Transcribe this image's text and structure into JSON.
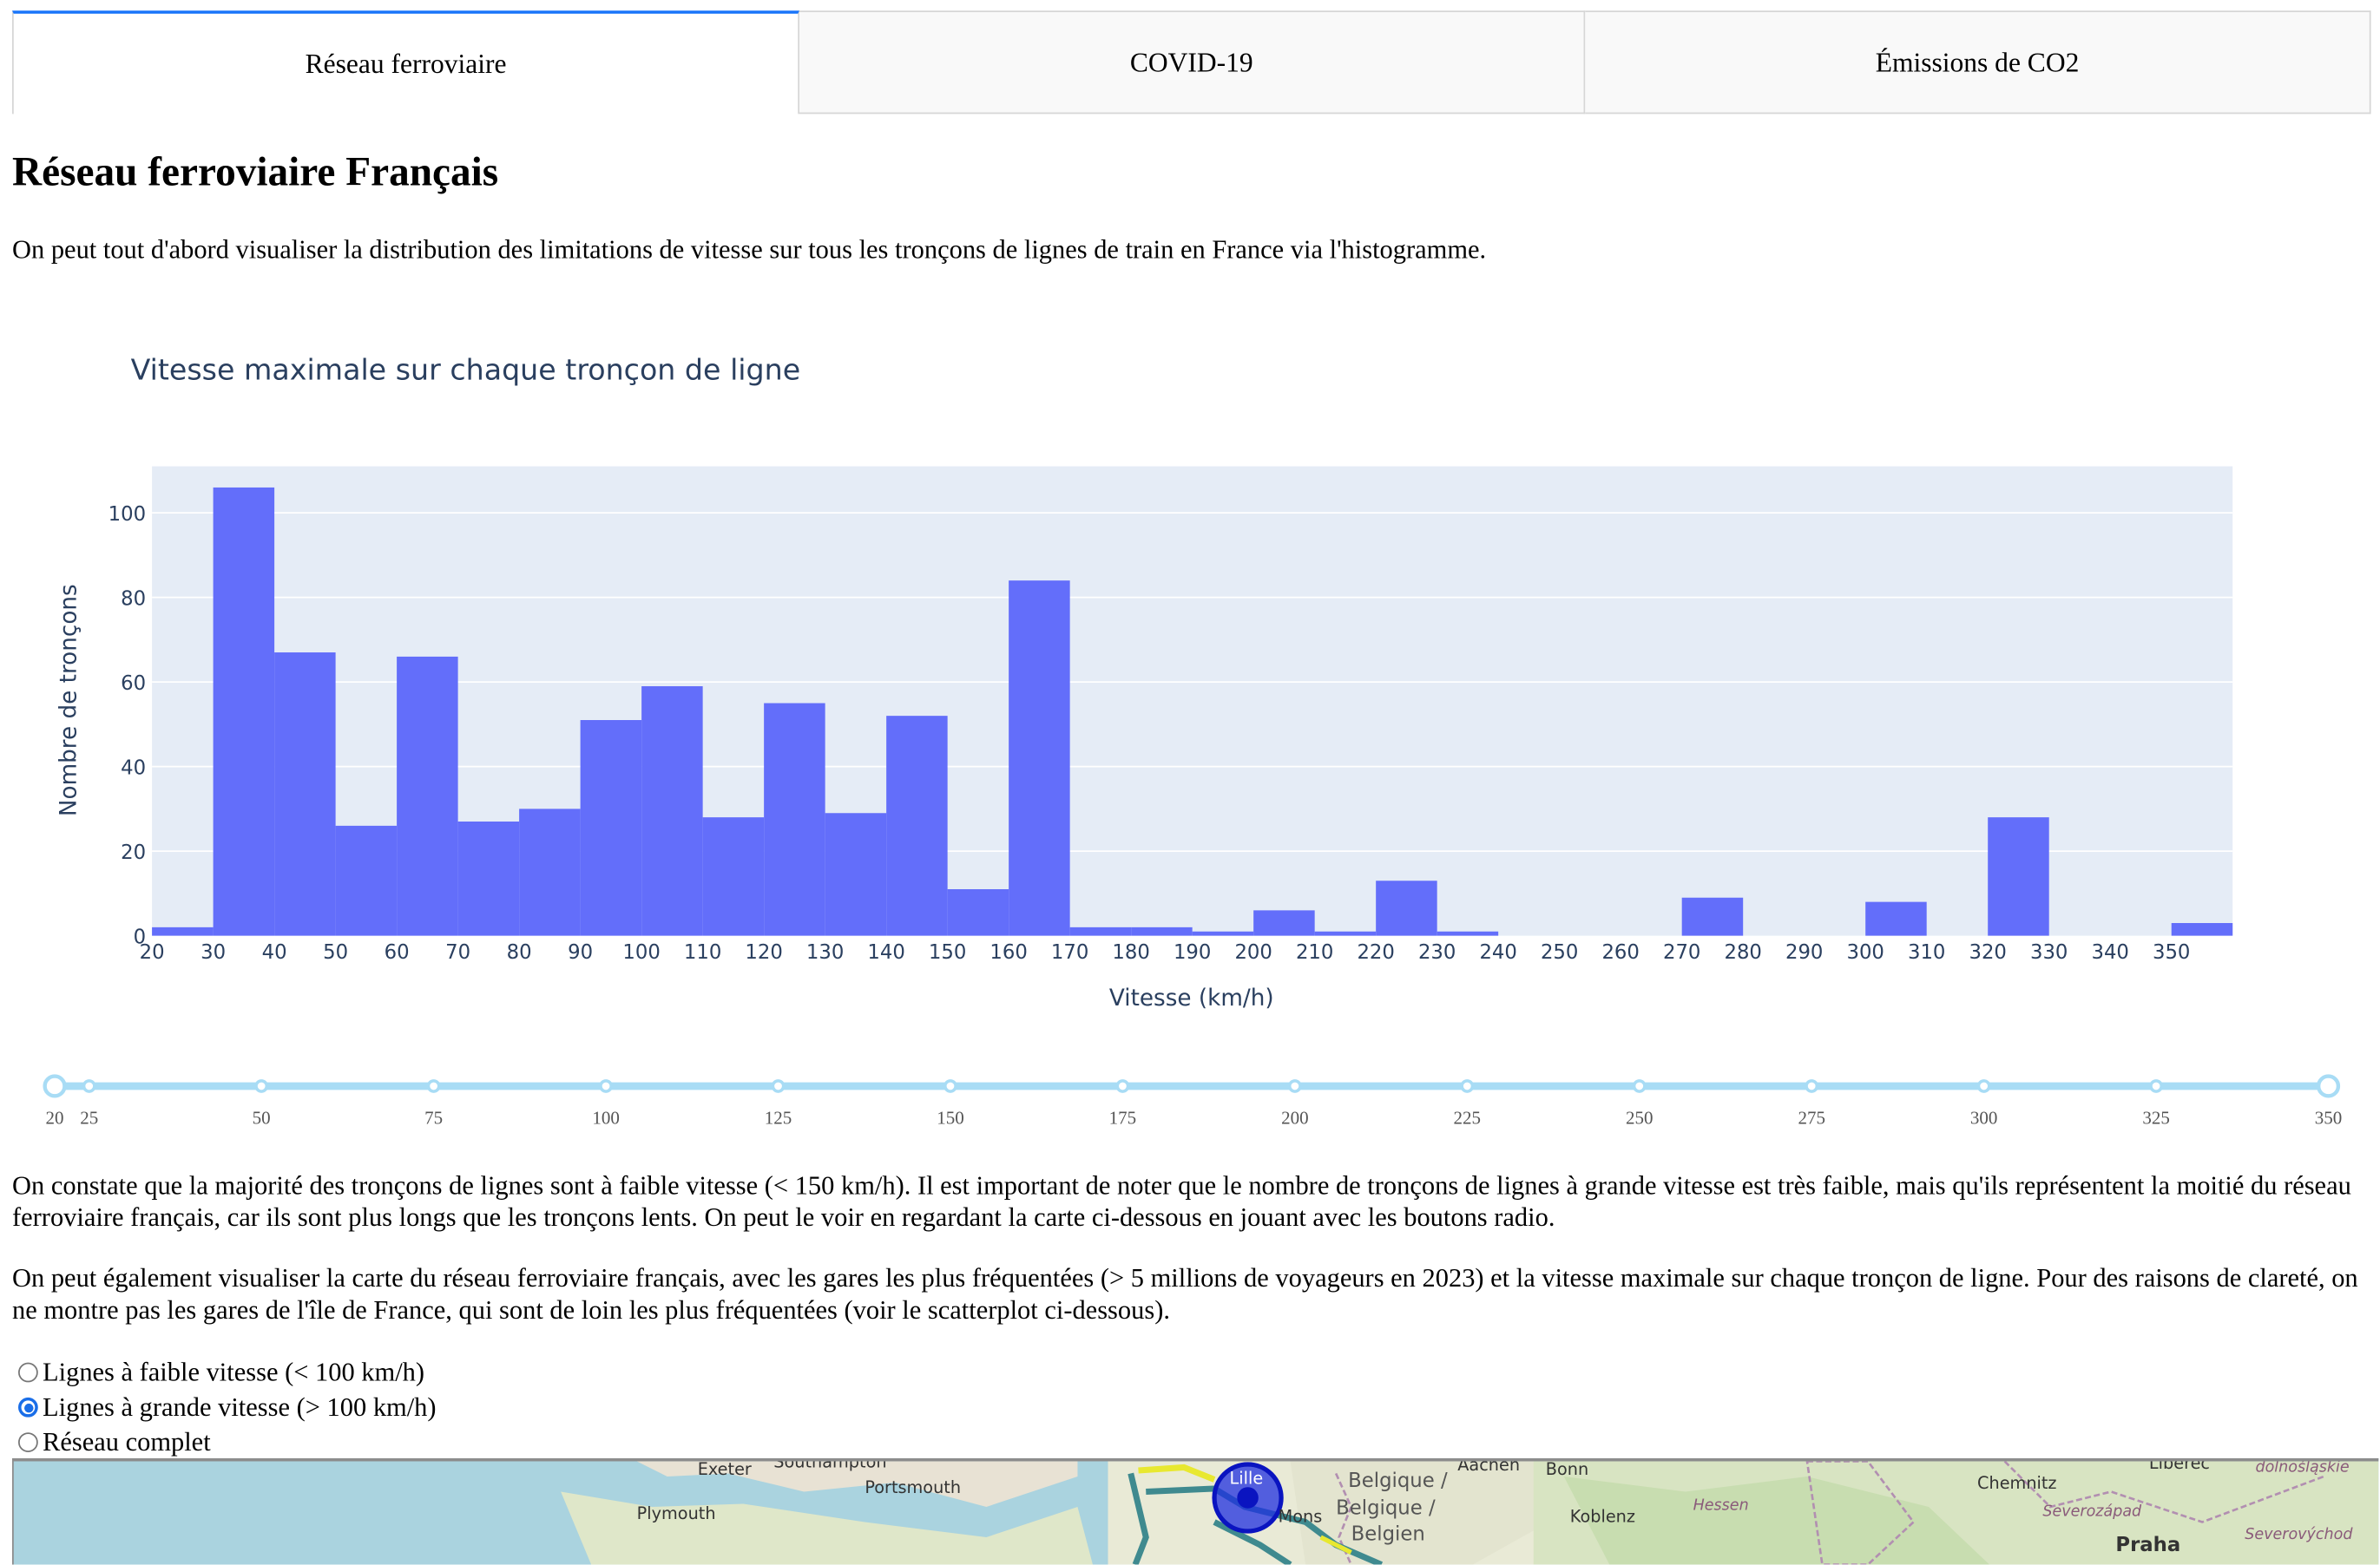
{
  "tabs": [
    {
      "label": "Réseau ferroviaire",
      "selected": true
    },
    {
      "label": "COVID-19",
      "selected": false
    },
    {
      "label": "Émissions de CO2",
      "selected": false
    }
  ],
  "page_title": "Réseau ferroviaire Français",
  "intro_text": "On peut tout d'abord visualiser la distribution des limitations de vitesse sur tous les tronçons de lignes de train en France via l'histogramme.",
  "chart_data": {
    "type": "bar",
    "title": "Vitesse maximale sur chaque tronçon de ligne",
    "xlabel": "Vitesse (km/h)",
    "ylabel": "Nombre de tronçons",
    "xlim": [
      20,
      360
    ],
    "ylim": [
      0,
      111
    ],
    "bin_width": 10,
    "bins": [
      {
        "x0": 20,
        "y": 2
      },
      {
        "x0": 30,
        "y": 106
      },
      {
        "x0": 40,
        "y": 67
      },
      {
        "x0": 50,
        "y": 26
      },
      {
        "x0": 60,
        "y": 66
      },
      {
        "x0": 70,
        "y": 27
      },
      {
        "x0": 80,
        "y": 30
      },
      {
        "x0": 90,
        "y": 51
      },
      {
        "x0": 100,
        "y": 59
      },
      {
        "x0": 110,
        "y": 28
      },
      {
        "x0": 120,
        "y": 55
      },
      {
        "x0": 130,
        "y": 29
      },
      {
        "x0": 140,
        "y": 52
      },
      {
        "x0": 150,
        "y": 11
      },
      {
        "x0": 160,
        "y": 84
      },
      {
        "x0": 170,
        "y": 2
      },
      {
        "x0": 180,
        "y": 2
      },
      {
        "x0": 190,
        "y": 1
      },
      {
        "x0": 200,
        "y": 6
      },
      {
        "x0": 210,
        "y": 1
      },
      {
        "x0": 220,
        "y": 13
      },
      {
        "x0": 230,
        "y": 1
      },
      {
        "x0": 270,
        "y": 9
      },
      {
        "x0": 300,
        "y": 8
      },
      {
        "x0": 320,
        "y": 28
      },
      {
        "x0": 350,
        "y": 3
      }
    ],
    "x_ticks": [
      20,
      30,
      40,
      50,
      60,
      70,
      80,
      90,
      100,
      110,
      120,
      130,
      140,
      150,
      160,
      170,
      180,
      190,
      200,
      210,
      220,
      230,
      240,
      250,
      260,
      270,
      280,
      290,
      300,
      310,
      320,
      330,
      340,
      350
    ],
    "y_ticks": [
      0,
      20,
      40,
      60,
      80,
      100
    ],
    "bar_color": "#636efa",
    "plot_bg": "#e5ecf6",
    "grid": true
  },
  "slider": {
    "min": 20,
    "max": 350,
    "value": [
      20,
      350
    ],
    "marks": [
      "20",
      "25",
      "50",
      "75",
      "100",
      "125",
      "150",
      "175",
      "200",
      "225",
      "250",
      "275",
      "300",
      "325",
      "350"
    ],
    "color": "#a8dcf5"
  },
  "analysis_text": "On constate que la majorité des tronçons de lignes sont à faible vitesse (< 150 km/h). Il est important de noter que le nombre de tronçons de lignes à grande vitesse est très faible, mais qu'ils représentent la moitié du réseau ferroviaire français, car ils sont plus longs que les tronçons lents. On peut le voir en regardant la carte ci-dessous en jouant avec les boutons radio.",
  "map_text": "On peut également visualiser la carte du réseau ferroviaire français, avec les gares les plus fréquentées (> 5 millions de voyageurs en 2023) et la vitesse maximale sur chaque tronçon de ligne. Pour des raisons de clareté, on ne montre pas les gares de l'île de France, qui sont de loin les plus fréquentées (voir le scatterplot ci-dessous).",
  "radio_options": [
    {
      "label": "Lignes à faible vitesse (< 100 km/h)",
      "checked": false
    },
    {
      "label": "Lignes à grande vitesse (> 100 km/h)",
      "checked": true
    },
    {
      "label": "Réseau complet",
      "checked": false
    }
  ],
  "map_labels": {
    "exeter": "Exeter",
    "southampton": "Southampton",
    "portsmouth": "Portsmouth",
    "plymouth": "Plymouth",
    "lille": "Lille",
    "mons": "Mons",
    "belgique1": "Belgique /",
    "belgique2": "Belgique /",
    "belgien": "Belgien",
    "aachen": "Aachen",
    "bonn": "Bonn",
    "hessen": "Hessen",
    "koblenz": "Koblenz",
    "chemnitz": "Chemnitz",
    "liberec": "Liberec",
    "dolnoslaskie": "dolnośląskie",
    "severozapad": "Severozápad",
    "severovychod": "Severovýchod",
    "praha": "Praha"
  }
}
